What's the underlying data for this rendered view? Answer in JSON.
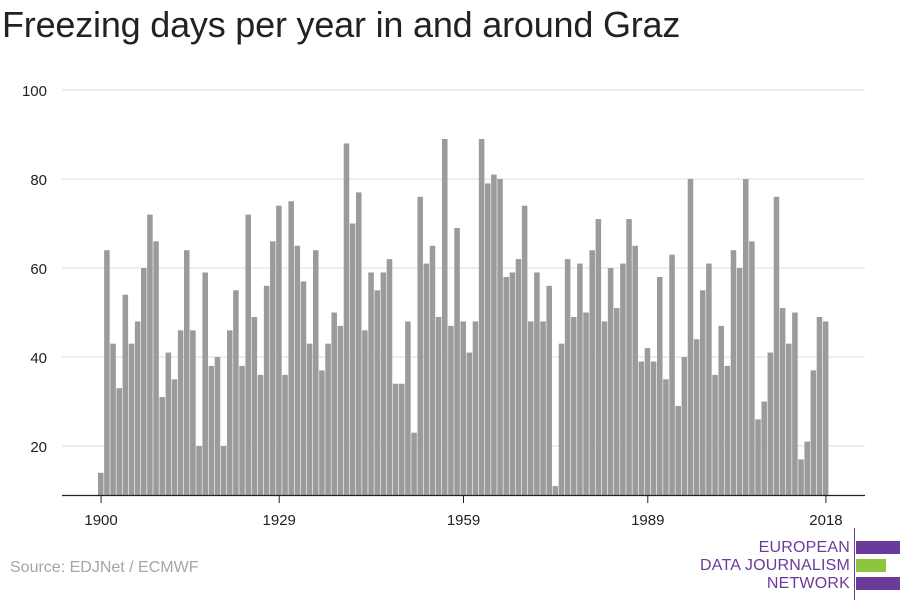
{
  "title": "Freezing days per year in and around Graz",
  "source": "Source: EDJNet / ECMWF",
  "logo": {
    "lines": [
      "EUROPEAN",
      "DATA JOURNALISM",
      "NETWORK"
    ],
    "colors": {
      "purple": "#6b3b9b",
      "green": "#8cc63f"
    }
  },
  "colors": {
    "bar": "#9b9b9b",
    "grid": "#dddddd",
    "axis": "#222222"
  },
  "chart_data": {
    "type": "bar",
    "title": "Freezing days per year in and around Graz",
    "xlabel": "",
    "ylabel": "",
    "ylim": [
      9,
      100
    ],
    "yticks": [
      20,
      40,
      60,
      80,
      100
    ],
    "xticks": [
      1900,
      1929,
      1959,
      1989,
      2018
    ],
    "grid": true,
    "start_year": 1900,
    "end_year": 2018,
    "years": [
      1900,
      1901,
      1902,
      1903,
      1904,
      1905,
      1906,
      1907,
      1908,
      1909,
      1910,
      1911,
      1912,
      1913,
      1914,
      1915,
      1916,
      1917,
      1918,
      1919,
      1920,
      1921,
      1922,
      1923,
      1924,
      1925,
      1926,
      1927,
      1928,
      1929,
      1930,
      1931,
      1932,
      1933,
      1934,
      1935,
      1936,
      1937,
      1938,
      1939,
      1940,
      1941,
      1942,
      1943,
      1944,
      1945,
      1946,
      1947,
      1948,
      1949,
      1950,
      1951,
      1952,
      1953,
      1954,
      1955,
      1956,
      1957,
      1958,
      1959,
      1960,
      1961,
      1962,
      1963,
      1964,
      1965,
      1966,
      1967,
      1968,
      1969,
      1970,
      1971,
      1972,
      1973,
      1974,
      1975,
      1976,
      1977,
      1978,
      1979,
      1980,
      1981,
      1982,
      1983,
      1984,
      1985,
      1986,
      1987,
      1988,
      1989,
      1990,
      1991,
      1992,
      1993,
      1994,
      1995,
      1996,
      1997,
      1998,
      1999,
      2000,
      2001,
      2002,
      2003,
      2004,
      2005,
      2006,
      2007,
      2008,
      2009,
      2010,
      2011,
      2012,
      2013,
      2014,
      2015,
      2016,
      2017,
      2018
    ],
    "values": [
      14,
      64,
      43,
      33,
      54,
      43,
      48,
      60,
      72,
      66,
      31,
      41,
      35,
      46,
      64,
      46,
      20,
      59,
      38,
      40,
      20,
      46,
      55,
      38,
      72,
      49,
      36,
      56,
      66,
      74,
      36,
      75,
      65,
      57,
      43,
      64,
      37,
      43,
      50,
      47,
      88,
      70,
      77,
      46,
      59,
      55,
      59,
      62,
      34,
      34,
      48,
      23,
      76,
      61,
      65,
      49,
      89,
      47,
      69,
      48,
      41,
      48,
      89,
      79,
      81,
      80,
      58,
      59,
      62,
      74,
      48,
      59,
      48,
      56,
      11,
      43,
      62,
      49,
      61,
      50,
      64,
      71,
      48,
      60,
      51,
      61,
      71,
      65,
      39,
      42,
      39,
      58,
      35,
      63,
      29,
      40,
      80,
      44,
      55,
      61,
      36,
      47,
      38,
      64,
      60,
      80,
      66,
      26,
      30,
      41,
      76,
      51,
      43,
      50,
      17,
      21,
      37,
      49,
      48
    ]
  }
}
